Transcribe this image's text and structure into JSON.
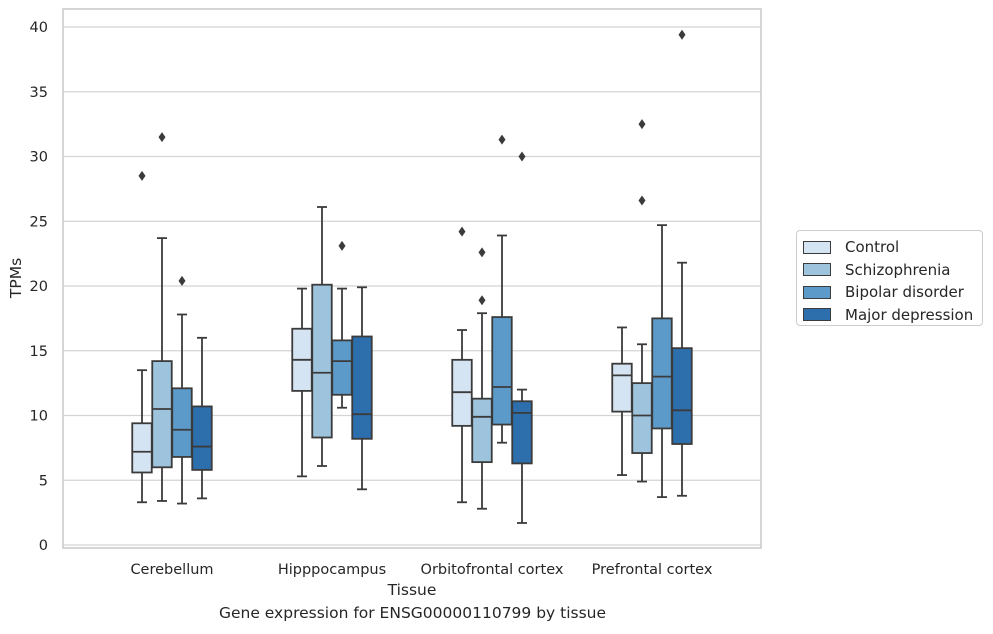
{
  "chart_data": {
    "type": "box",
    "xlabel": "Tissue",
    "ylabel": "TPMs",
    "ylim": [
      0,
      41.5
    ],
    "yticks": [
      0,
      5,
      10,
      15,
      20,
      25,
      30,
      35,
      40
    ],
    "grid": "horizontal",
    "legend_position": "right",
    "categories": [
      "Cerebellum",
      "Hipppocampus",
      "Orbitofrontal cortex",
      "Prefrontal cortex"
    ],
    "series": [
      {
        "name": "Control",
        "color": "#d5e4f2",
        "boxes": [
          {
            "whislo": 3.3,
            "q1": 5.6,
            "med": 7.2,
            "q3": 9.4,
            "whishi": 13.5,
            "fliers": [
              28.5
            ]
          },
          {
            "whislo": 5.3,
            "q1": 11.9,
            "med": 14.3,
            "q3": 16.7,
            "whishi": 19.8,
            "fliers": []
          },
          {
            "whislo": 3.3,
            "q1": 9.2,
            "med": 11.8,
            "q3": 14.3,
            "whishi": 16.6,
            "fliers": [
              24.2
            ]
          },
          {
            "whislo": 5.4,
            "q1": 10.3,
            "med": 13.1,
            "q3": 14.0,
            "whishi": 16.8,
            "fliers": []
          }
        ]
      },
      {
        "name": "Schizophrenia",
        "color": "#9dc3dd",
        "boxes": [
          {
            "whislo": 3.4,
            "q1": 6.0,
            "med": 10.5,
            "q3": 14.2,
            "whishi": 23.7,
            "fliers": [
              31.5
            ]
          },
          {
            "whislo": 6.1,
            "q1": 8.3,
            "med": 13.3,
            "q3": 20.1,
            "whishi": 26.1,
            "fliers": []
          },
          {
            "whislo": 2.8,
            "q1": 6.4,
            "med": 9.9,
            "q3": 11.3,
            "whishi": 17.9,
            "fliers": [
              18.9,
              22.6
            ]
          },
          {
            "whislo": 4.9,
            "q1": 7.1,
            "med": 10.0,
            "q3": 12.5,
            "whishi": 15.5,
            "fliers": [
              26.6,
              32.5
            ]
          }
        ]
      },
      {
        "name": "Bipolar disorder",
        "color": "#5c9ac9",
        "boxes": [
          {
            "whislo": 3.2,
            "q1": 6.8,
            "med": 8.9,
            "q3": 12.1,
            "whishi": 17.8,
            "fliers": [
              20.4
            ]
          },
          {
            "whislo": 10.6,
            "q1": 11.6,
            "med": 14.2,
            "q3": 15.8,
            "whishi": 19.8,
            "fliers": [
              23.1
            ]
          },
          {
            "whislo": 7.9,
            "q1": 9.3,
            "med": 12.2,
            "q3": 17.6,
            "whishi": 23.9,
            "fliers": [
              31.3
            ]
          },
          {
            "whislo": 3.7,
            "q1": 9.0,
            "med": 13.0,
            "q3": 17.5,
            "whishi": 24.7,
            "fliers": []
          }
        ]
      },
      {
        "name": "Major depression",
        "color": "#2d6ead",
        "boxes": [
          {
            "whislo": 3.6,
            "q1": 5.8,
            "med": 7.6,
            "q3": 10.7,
            "whishi": 16.0,
            "fliers": []
          },
          {
            "whislo": 4.3,
            "q1": 8.2,
            "med": 10.1,
            "q3": 16.1,
            "whishi": 19.9,
            "fliers": []
          },
          {
            "whislo": 1.7,
            "q1": 6.3,
            "med": 10.2,
            "q3": 11.1,
            "whishi": 12.0,
            "fliers": [
              30.0
            ]
          },
          {
            "whislo": 3.8,
            "q1": 7.8,
            "med": 10.4,
            "q3": 15.2,
            "whishi": 21.8,
            "fliers": [
              39.4
            ]
          }
        ]
      }
    ]
  },
  "caption": "Gene expression for ENSG00000110799 by tissue"
}
